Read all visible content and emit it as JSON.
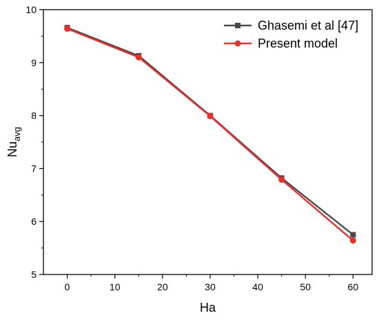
{
  "chart_data": {
    "type": "line",
    "xlabel": "Ha",
    "ylabel_main": "Nu",
    "ylabel_sub": "avg",
    "xlim": [
      -5,
      64
    ],
    "ylim": [
      5,
      10
    ],
    "x_ticks": [
      0,
      10,
      20,
      30,
      40,
      50,
      60
    ],
    "y_ticks": [
      5,
      6,
      7,
      8,
      9,
      10
    ],
    "legend_position": "top-right",
    "series": [
      {
        "name": "Ghasemi et al [47]",
        "color": "#4a4a4a",
        "marker": "square",
        "x": [
          0,
          15,
          30,
          45,
          60
        ],
        "y": [
          9.66,
          9.13,
          8.0,
          6.82,
          5.75
        ]
      },
      {
        "name": "Present model",
        "color": "#e8312e",
        "marker": "circle",
        "x": [
          0,
          15,
          30,
          45,
          60
        ],
        "y": [
          9.64,
          9.1,
          7.99,
          6.79,
          5.64
        ]
      }
    ]
  }
}
